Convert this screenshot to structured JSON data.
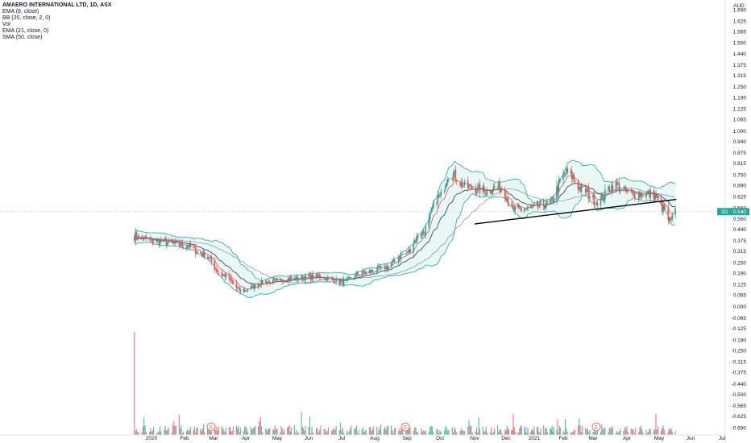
{
  "legend": {
    "title": "AMAERO INTERNATIONAL LTD, 1D, ASX",
    "indicators": [
      "EMA (8, close)",
      "BB (20, close, 2, 0)",
      "Vol",
      "EMA (21, close, 0)",
      "SMA (50, close)"
    ]
  },
  "currency": "AUD",
  "price_tag": {
    "label": "3D",
    "value": "0.540"
  },
  "colors": {
    "up": "#26a69a",
    "down": "#ef5350",
    "bb_band": "#26a69a",
    "bb_fill": "#e3f5f2",
    "ema8": "#ef5350",
    "ema21": "#3b4a6b",
    "sma50": "#8a9bb8",
    "trendline": "#000000",
    "tag": "#26a69a",
    "vol_up": "#26a69a",
    "vol_down": "#ef5350"
  },
  "earnings_markers": [
    {
      "month": "Mar",
      "label": "E"
    },
    {
      "month": "Sep",
      "label": "E"
    },
    {
      "month": "Mar",
      "label": "E"
    }
  ],
  "chart_data": {
    "type": "candlestick",
    "title": "AMAERO INTERNATIONAL LTD, 1D, ASX",
    "x_ticks": [
      "2020",
      "Feb",
      "Mar",
      "Apr",
      "May",
      "Jun",
      "Jul",
      "Aug",
      "Sep",
      "Oct",
      "Nov",
      "Dec",
      "2021",
      "Feb",
      "Mar",
      "Apr",
      "May",
      "Jun",
      "Jul"
    ],
    "y_ticks": [
      "1.690",
      "1.625",
      "1.565",
      "1.500",
      "1.440",
      "1.375",
      "1.315",
      "1.250",
      "1.190",
      "1.125",
      "1.065",
      "1.000",
      "0.940",
      "0.875",
      "0.815",
      "0.750",
      "0.690",
      "0.625",
      "0.560",
      "0.500",
      "0.440",
      "0.375",
      "0.315",
      "0.250",
      "0.190",
      "0.125",
      "0.065",
      "0.000",
      "-0.065",
      "-0.125",
      "-0.190",
      "-0.250",
      "-0.315",
      "-0.375",
      "-0.440",
      "-0.500",
      "-0.565",
      "-0.625",
      "-0.690"
    ],
    "ylim": [
      -0.69,
      1.69
    ],
    "close_path": [
      {
        "x": "2019-12-16",
        "y": 0.4
      },
      {
        "x": "2020-01-05",
        "y": 0.37
      },
      {
        "x": "2020-02-01",
        "y": 0.35
      },
      {
        "x": "2020-02-20",
        "y": 0.3
      },
      {
        "x": "2020-03-10",
        "y": 0.18
      },
      {
        "x": "2020-03-28",
        "y": 0.09
      },
      {
        "x": "2020-04-20",
        "y": 0.14
      },
      {
        "x": "2020-05-15",
        "y": 0.16
      },
      {
        "x": "2020-06-10",
        "y": 0.17
      },
      {
        "x": "2020-07-01",
        "y": 0.14
      },
      {
        "x": "2020-07-20",
        "y": 0.19
      },
      {
        "x": "2020-08-10",
        "y": 0.22
      },
      {
        "x": "2020-08-30",
        "y": 0.3
      },
      {
        "x": "2020-09-15",
        "y": 0.42
      },
      {
        "x": "2020-09-30",
        "y": 0.62
      },
      {
        "x": "2020-10-10",
        "y": 0.76
      },
      {
        "x": "2020-10-25",
        "y": 0.68
      },
      {
        "x": "2020-11-10",
        "y": 0.66
      },
      {
        "x": "2020-11-25",
        "y": 0.68
      },
      {
        "x": "2020-12-10",
        "y": 0.55
      },
      {
        "x": "2020-12-28",
        "y": 0.56
      },
      {
        "x": "2021-01-15",
        "y": 0.58
      },
      {
        "x": "2021-02-05",
        "y": 0.76
      },
      {
        "x": "2021-02-20",
        "y": 0.66
      },
      {
        "x": "2021-03-05",
        "y": 0.6
      },
      {
        "x": "2021-03-20",
        "y": 0.69
      },
      {
        "x": "2021-04-05",
        "y": 0.64
      },
      {
        "x": "2021-04-25",
        "y": 0.64
      },
      {
        "x": "2021-05-05",
        "y": 0.56
      },
      {
        "x": "2021-05-12",
        "y": 0.48
      },
      {
        "x": "2021-05-17",
        "y": 0.54
      }
    ],
    "trendline": [
      {
        "x": "2020-11-01",
        "y": 0.47
      },
      {
        "x": "2021-05-18",
        "y": 0.61
      }
    ],
    "volume_note": "spike at chart start (mid-Dec 2019); remaining volume low"
  }
}
